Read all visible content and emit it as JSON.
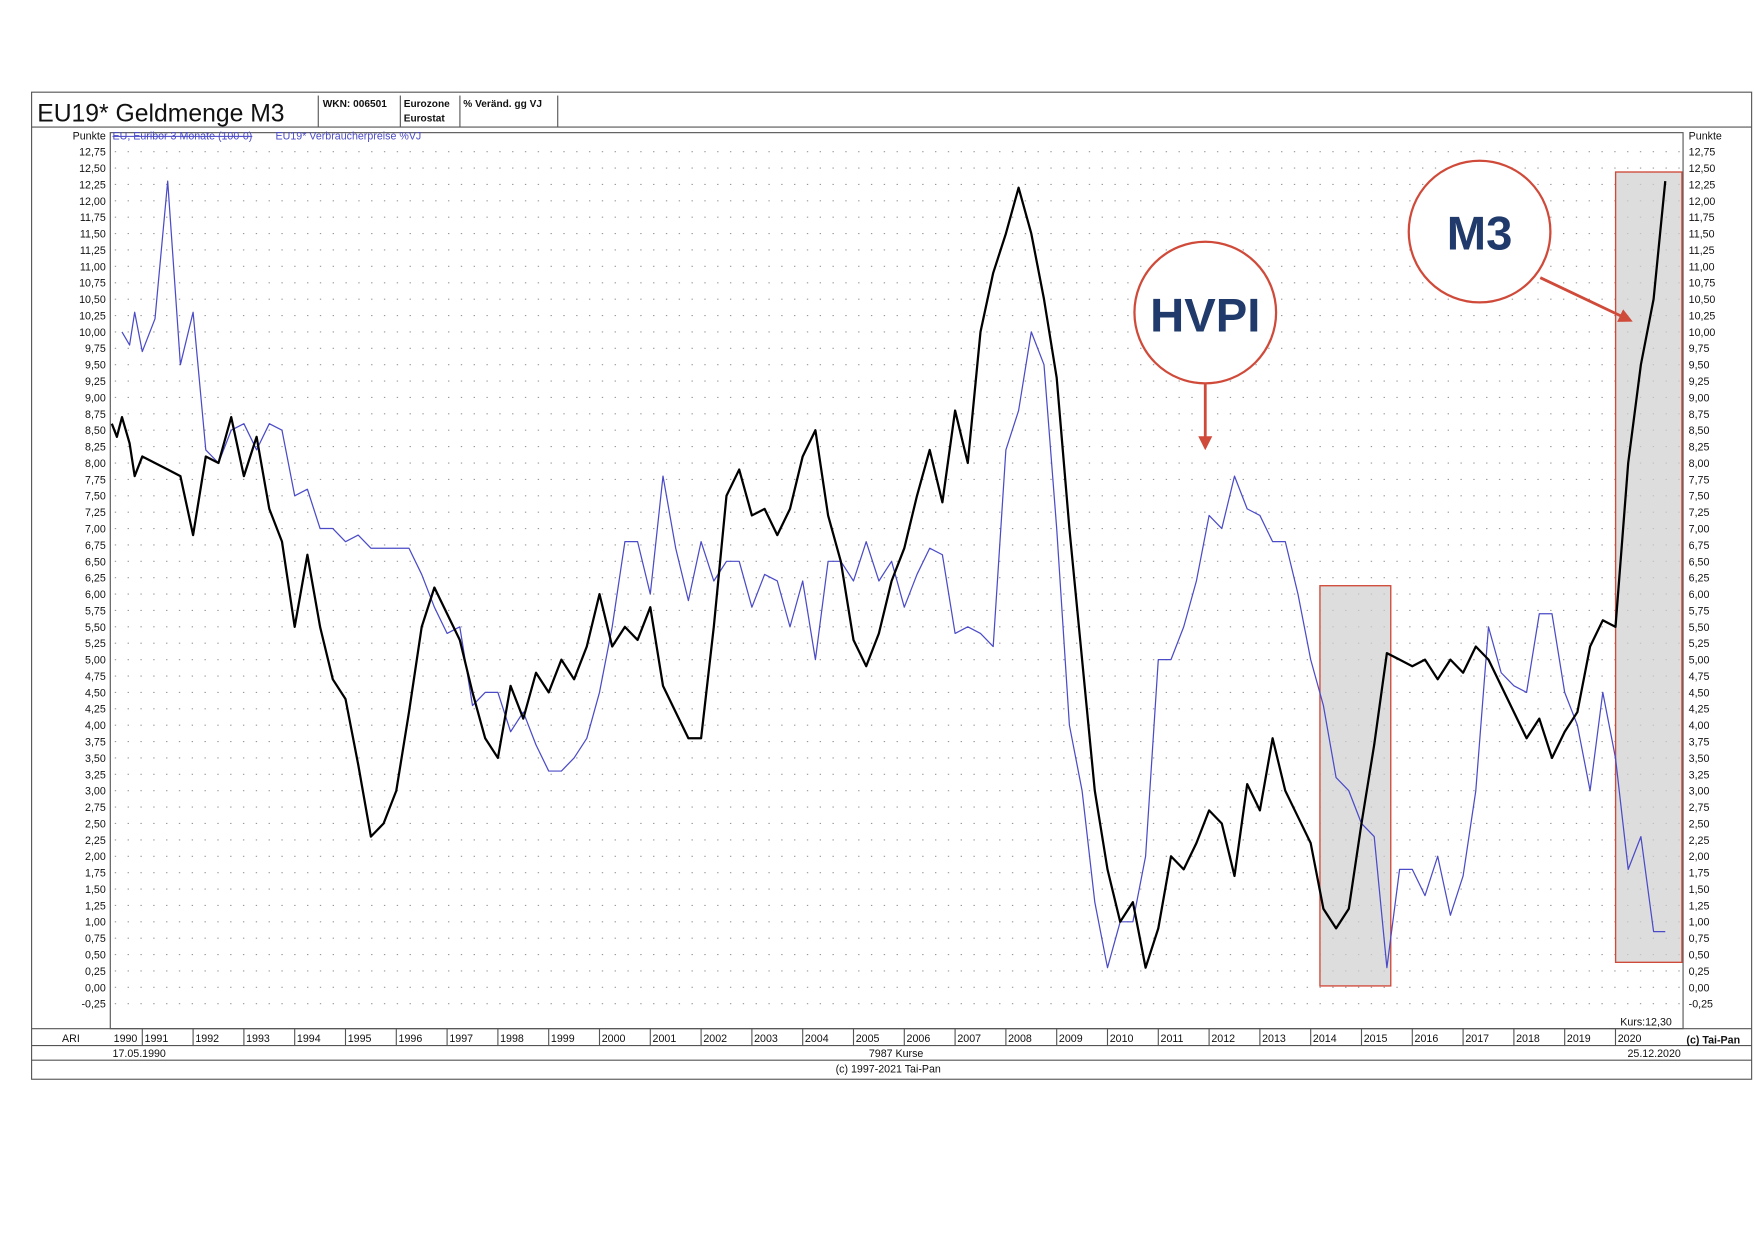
{
  "chart_data": {
    "type": "line",
    "title": "EU19* Geldmenge M3",
    "wkn": "WKN: 006501",
    "region": "Eurozone",
    "source": "Eurostat",
    "unit": "% Veränd. gg VJ",
    "y_label": "Punkte",
    "hidden_legend": "EU, Euribor 3 Monate (100-0)",
    "x_row_label": "ARI",
    "x_start_label": "1990",
    "start_date": "17.05.1990",
    "end_date": "25.12.2020",
    "count_label": "7987 Kurse",
    "last_value_label": "Kurs:12,30",
    "right_credit": "(c) Tai-Pan",
    "copyright": "(c) 1997-2021 Tai-Pan",
    "annotations": [
      "HVPI",
      "M3"
    ],
    "grid": true,
    "xlim": [
      1990.37,
      2021.33
    ],
    "xticks": [
      1991,
      1992,
      1993,
      1994,
      1995,
      1996,
      1997,
      1998,
      1999,
      2000,
      2001,
      2002,
      2003,
      2004,
      2005,
      2006,
      2007,
      2008,
      2009,
      2010,
      2011,
      2012,
      2013,
      2014,
      2015,
      2016,
      2017,
      2018,
      2019,
      2020
    ],
    "ylim": [
      -0.63,
      13.04
    ],
    "yticks": [
      {
        "value": -0.25,
        "label": "-0,25"
      },
      {
        "value": 0,
        "label": "0,00"
      },
      {
        "value": 0.25,
        "label": "0,25"
      },
      {
        "value": 0.5,
        "label": "0,50"
      },
      {
        "value": 0.75,
        "label": "0,75"
      },
      {
        "value": 1,
        "label": "1,00"
      },
      {
        "value": 1.25,
        "label": "1,25"
      },
      {
        "value": 1.5,
        "label": "1,50"
      },
      {
        "value": 1.75,
        "label": "1,75"
      },
      {
        "value": 2,
        "label": "2,00"
      },
      {
        "value": 2.25,
        "label": "2,25"
      },
      {
        "value": 2.5,
        "label": "2,50"
      },
      {
        "value": 2.75,
        "label": "2,75"
      },
      {
        "value": 3,
        "label": "3,00"
      },
      {
        "value": 3.25,
        "label": "3,25"
      },
      {
        "value": 3.5,
        "label": "3,50"
      },
      {
        "value": 3.75,
        "label": "3,75"
      },
      {
        "value": 4,
        "label": "4,00"
      },
      {
        "value": 4.25,
        "label": "4,25"
      },
      {
        "value": 4.5,
        "label": "4,50"
      },
      {
        "value": 4.75,
        "label": "4,75"
      },
      {
        "value": 5,
        "label": "5,00"
      },
      {
        "value": 5.25,
        "label": "5,25"
      },
      {
        "value": 5.5,
        "label": "5,50"
      },
      {
        "value": 5.75,
        "label": "5,75"
      },
      {
        "value": 6,
        "label": "6,00"
      },
      {
        "value": 6.25,
        "label": "6,25"
      },
      {
        "value": 6.5,
        "label": "6,50"
      },
      {
        "value": 6.75,
        "label": "6,75"
      },
      {
        "value": 7,
        "label": "7,00"
      },
      {
        "value": 7.25,
        "label": "7,25"
      },
      {
        "value": 7.5,
        "label": "7,50"
      },
      {
        "value": 7.75,
        "label": "7,75"
      },
      {
        "value": 8,
        "label": "8,00"
      },
      {
        "value": 8.25,
        "label": "8,25"
      },
      {
        "value": 8.5,
        "label": "8,50"
      },
      {
        "value": 8.75,
        "label": "8,75"
      },
      {
        "value": 9,
        "label": "9,00"
      },
      {
        "value": 9.25,
        "label": "9,25"
      },
      {
        "value": 9.5,
        "label": "9,50"
      },
      {
        "value": 9.75,
        "label": "9,75"
      },
      {
        "value": 10,
        "label": "10,00"
      },
      {
        "value": 10.25,
        "label": "10,25"
      },
      {
        "value": 10.5,
        "label": "10,50"
      },
      {
        "value": 10.75,
        "label": "10,75"
      },
      {
        "value": 11,
        "label": "11,00"
      },
      {
        "value": 11.25,
        "label": "11,25"
      },
      {
        "value": 11.5,
        "label": "11,50"
      },
      {
        "value": 11.75,
        "label": "11,75"
      },
      {
        "value": 12,
        "label": "12,00"
      },
      {
        "value": 12.25,
        "label": "12,25"
      },
      {
        "value": 12.5,
        "label": "12,50"
      },
      {
        "value": 12.75,
        "label": "12,75"
      }
    ],
    "x": [
      1990.4,
      1990.5,
      1990.6,
      1990.75,
      1990.85,
      1991,
      1991.25,
      1991.5,
      1991.75,
      1992,
      1992.25,
      1992.5,
      1992.75,
      1993,
      1993.25,
      1993.5,
      1993.75,
      1994,
      1994.25,
      1994.5,
      1994.75,
      1995,
      1995.25,
      1995.5,
      1995.75,
      1996,
      1996.25,
      1996.5,
      1996.75,
      1997,
      1997.25,
      1997.5,
      1997.75,
      1998,
      1998.25,
      1998.5,
      1998.75,
      1999,
      1999.25,
      1999.5,
      1999.75,
      2000,
      2000.25,
      2000.5,
      2000.75,
      2001,
      2001.25,
      2001.5,
      2001.75,
      2002,
      2002.25,
      2002.5,
      2002.75,
      2003,
      2003.25,
      2003.5,
      2003.75,
      2004,
      2004.25,
      2004.5,
      2004.75,
      2005,
      2005.25,
      2005.5,
      2005.75,
      2006,
      2006.25,
      2006.5,
      2006.75,
      2007,
      2007.25,
      2007.5,
      2007.75,
      2008,
      2008.25,
      2008.5,
      2008.75,
      2009,
      2009.25,
      2009.5,
      2009.75,
      2010,
      2010.25,
      2010.5,
      2010.75,
      2011,
      2011.25,
      2011.5,
      2011.75,
      2012,
      2012.25,
      2012.5,
      2012.75,
      2013,
      2013.25,
      2013.5,
      2013.75,
      2014,
      2014.25,
      2014.5,
      2014.75,
      2015,
      2015.25,
      2015.5,
      2015.75,
      2016,
      2016.25,
      2016.5,
      2016.75,
      2017,
      2017.25,
      2017.5,
      2017.75,
      2018,
      2018.25,
      2018.5,
      2018.75,
      2019,
      2019.25,
      2019.5,
      2019.75,
      2020,
      2020.25,
      2020.5,
      2020.75,
      2020.98
    ],
    "series": [
      {
        "color": "#000000",
        "values": [
          8.6,
          8.4,
          8.7,
          8.3,
          7.8,
          8.1,
          8.0,
          7.9,
          7.8,
          6.9,
          8.1,
          8.0,
          8.7,
          7.8,
          8.4,
          7.3,
          6.8,
          5.5,
          6.6,
          5.5,
          4.7,
          4.4,
          3.4,
          2.3,
          2.5,
          3.0,
          4.2,
          5.5,
          6.1,
          5.7,
          5.3,
          4.5,
          3.8,
          3.5,
          4.6,
          4.1,
          4.8,
          4.5,
          5.0,
          4.7,
          5.2,
          6.0,
          5.2,
          5.5,
          5.3,
          5.8,
          4.6,
          4.2,
          3.8,
          3.8,
          5.5,
          7.5,
          7.9,
          7.2,
          7.3,
          6.9,
          7.3,
          8.1,
          8.5,
          7.2,
          6.5,
          5.3,
          4.9,
          5.4,
          6.2,
          6.7,
          7.5,
          8.2,
          7.4,
          8.8,
          8.0,
          10.0,
          10.9,
          11.5,
          12.2,
          11.5,
          10.5,
          9.3,
          7.0,
          5.0,
          3.0,
          1.8,
          1.0,
          1.3,
          0.3,
          0.9,
          2.0,
          1.8,
          2.2,
          2.7,
          2.5,
          1.7,
          3.1,
          2.7,
          3.8,
          3.0,
          2.6,
          2.2,
          1.2,
          0.9,
          1.2,
          2.5,
          3.7,
          5.1,
          5.0,
          4.9,
          5.0,
          4.7,
          5.0,
          4.8,
          5.2,
          5.0,
          4.6,
          4.2,
          3.8,
          4.1,
          3.5,
          3.9,
          4.2,
          5.2,
          5.6,
          5.5,
          8.0,
          9.5,
          10.5,
          12.3
        ]
      },
      {
        "name": "EU19* Verbraucherpreise %VJ",
        "color": "#4b4bc8",
        "values": [
          null,
          null,
          10.0,
          9.8,
          10.3,
          9.7,
          10.2,
          12.3,
          9.5,
          10.3,
          8.2,
          8.0,
          8.5,
          8.6,
          8.2,
          8.6,
          8.5,
          7.5,
          7.6,
          7.0,
          7.0,
          6.8,
          6.9,
          6.7,
          6.7,
          6.7,
          6.7,
          6.3,
          5.8,
          5.4,
          5.5,
          4.3,
          4.5,
          4.5,
          3.9,
          4.2,
          3.7,
          3.3,
          3.3,
          3.5,
          3.8,
          4.5,
          5.5,
          6.8,
          6.8,
          6.0,
          7.8,
          6.7,
          5.9,
          6.8,
          6.2,
          6.5,
          6.5,
          5.8,
          6.3,
          6.2,
          5.5,
          6.2,
          5.0,
          6.5,
          6.5,
          6.2,
          6.8,
          6.2,
          6.5,
          5.8,
          6.3,
          6.7,
          6.6,
          5.4,
          5.5,
          5.4,
          5.2,
          8.2,
          8.8,
          10.0,
          9.5,
          7.0,
          4.0,
          3.0,
          1.3,
          0.3,
          1.0,
          1.0,
          2.0,
          5.0,
          5.0,
          5.5,
          6.2,
          7.2,
          7.0,
          7.8,
          7.3,
          7.2,
          6.8,
          6.8,
          6.0,
          5.0,
          4.3,
          3.2,
          3.0,
          2.5,
          2.3,
          0.3,
          1.8,
          1.8,
          1.4,
          2.0,
          1.1,
          1.7,
          3.0,
          5.5,
          4.8,
          4.6,
          4.5,
          5.7,
          5.7,
          4.5,
          4.0,
          3.0,
          4.5,
          3.5,
          1.8,
          2.3,
          0.85,
          0.85
        ]
      }
    ]
  }
}
